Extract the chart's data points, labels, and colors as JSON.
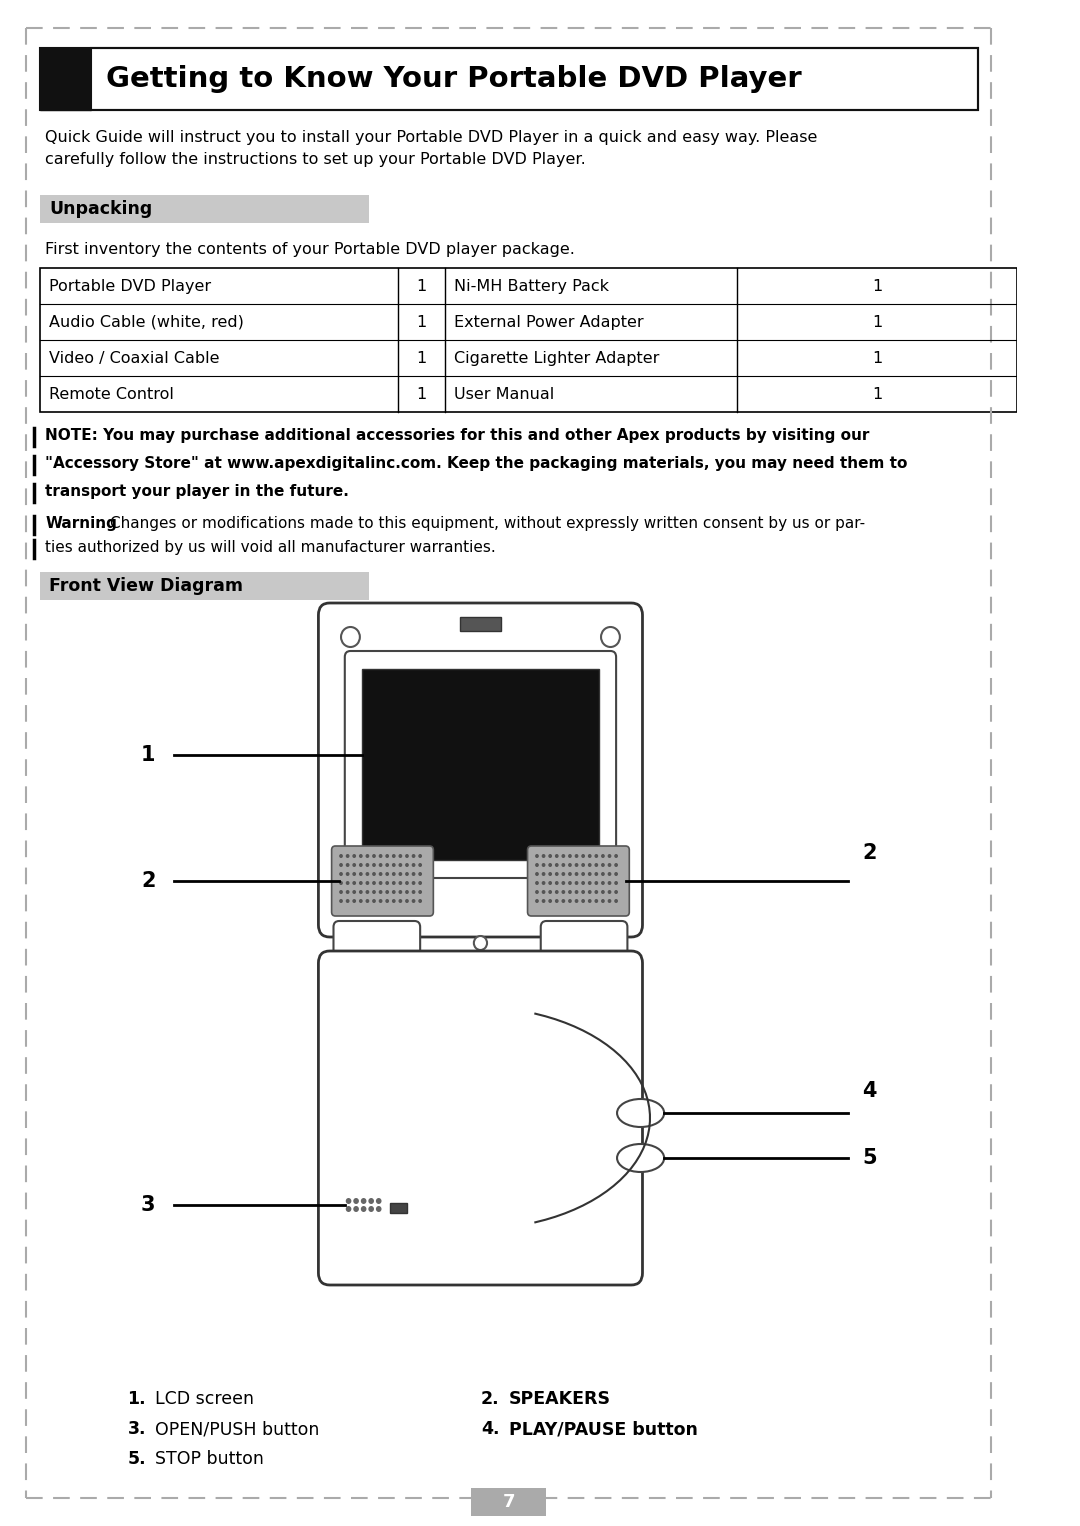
{
  "title": "Getting to Know Your Portable DVD Player",
  "intro_text1": "Quick Guide will instruct you to install your Portable DVD Player in a quick and easy way. Please",
  "intro_text2": "carefully follow the instructions to set up your Portable DVD Player.",
  "unpacking_label": "Unpacking",
  "unpacking_intro": "First inventory the contents of your Portable DVD player package.",
  "table_rows": [
    [
      "Portable DVD Player",
      "1",
      "Ni-MH Battery Pack",
      "1"
    ],
    [
      "Audio Cable (white, red)",
      "1",
      "External Power Adapter",
      "1"
    ],
    [
      "Video / Coaxial Cable",
      "1",
      "Cigarette Lighter Adapter",
      "1"
    ],
    [
      "Remote Control",
      "1",
      "User Manual",
      "1"
    ]
  ],
  "note_bold": "NOTE: You may purchase additional accessories for this and other Apex products by visiting our",
  "note_bold2": "\"Accessory Store\" at www.apexdigitalinc.com. Keep the packaging materials, you may need them to",
  "note_bold3": "transport your player in the future.",
  "warn_label": "Warning",
  "warn_text1": ": Changes or modifications made to this equipment, without expressly written consent by us or par-",
  "warn_text2": "ties authorized by us will void all manufacturer warranties.",
  "front_view_label": "Front View Diagram",
  "legend": [
    [
      "1.",
      "LCD screen",
      "2.",
      "SPEAKERS"
    ],
    [
      "3.",
      "OPEN/PUSH button",
      "4.",
      "PLAY/PAUSE button"
    ],
    [
      "5.",
      "STOP button",
      "",
      ""
    ]
  ],
  "page_number": "7",
  "bg_color": "#ffffff"
}
